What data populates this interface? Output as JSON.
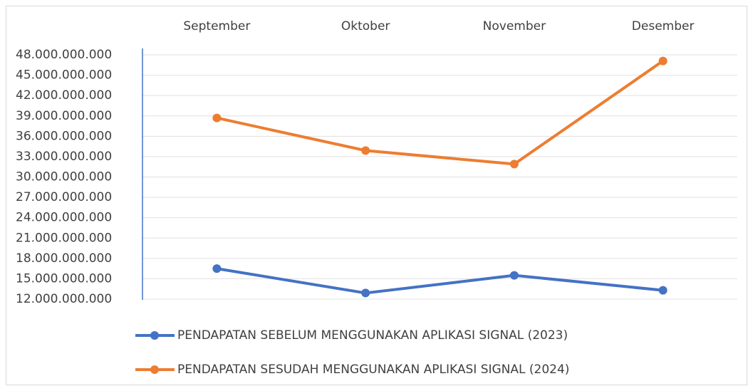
{
  "chart_data": {
    "type": "line",
    "categories": [
      "September",
      "Oktober",
      "November",
      "Desember"
    ],
    "series": [
      {
        "name": "PENDAPATAN SEBELUM MENGGUNAKAN APLIKASI SIGNAL (2023)",
        "color": "#4472c4",
        "values": [
          16500000000,
          12900000000,
          15500000000,
          13300000000
        ]
      },
      {
        "name": "PENDAPATAN SESUDAH MENGGUNAKAN APLIKASI SIGNAL (2024)",
        "color": "#ed7d31",
        "values": [
          38700000000,
          33900000000,
          31900000000,
          47100000000
        ]
      }
    ],
    "ylim": [
      12000000000,
      48000000000
    ],
    "yticks": [
      {
        "value": 12000000000,
        "label": "12.000.000.000"
      },
      {
        "value": 15000000000,
        "label": "15.000.000.000"
      },
      {
        "value": 18000000000,
        "label": "18.000.000.000"
      },
      {
        "value": 21000000000,
        "label": "21.000.000.000"
      },
      {
        "value": 24000000000,
        "label": "24.000.000.000"
      },
      {
        "value": 27000000000,
        "label": "27.000.000.000"
      },
      {
        "value": 30000000000,
        "label": "30.000.000.000"
      },
      {
        "value": 33000000000,
        "label": "33.000.000.000"
      },
      {
        "value": 36000000000,
        "label": "36.000.000.000"
      },
      {
        "value": 39000000000,
        "label": "39.000.000.000"
      },
      {
        "value": 42000000000,
        "label": "42.000.000.000"
      },
      {
        "value": 45000000000,
        "label": "45.000.000.000"
      },
      {
        "value": 48000000000,
        "label": "48.000.000.000"
      }
    ],
    "grid": true,
    "legend": "bottom"
  }
}
